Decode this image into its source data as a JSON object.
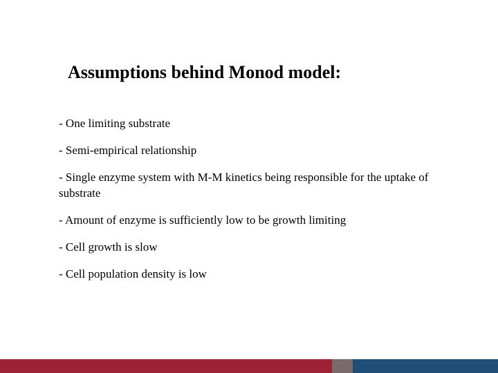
{
  "slide": {
    "title": "Assumptions behind Monod model:",
    "bullets": [
      "- One limiting substrate",
      "- Semi-empirical relationship",
      "- Single enzyme system with M-M kinetics being responsible for the uptake of substrate",
      "- Amount of enzyme is sufficiently low to be  growth limiting",
      "- Cell growth is slow",
      "- Cell population density is low"
    ]
  },
  "colors": {
    "footer_primary": "#204e79",
    "footer_accent": "#9d2235",
    "footer_mid": "#7a6a6c",
    "background": "#ffffff",
    "text": "#000000"
  }
}
